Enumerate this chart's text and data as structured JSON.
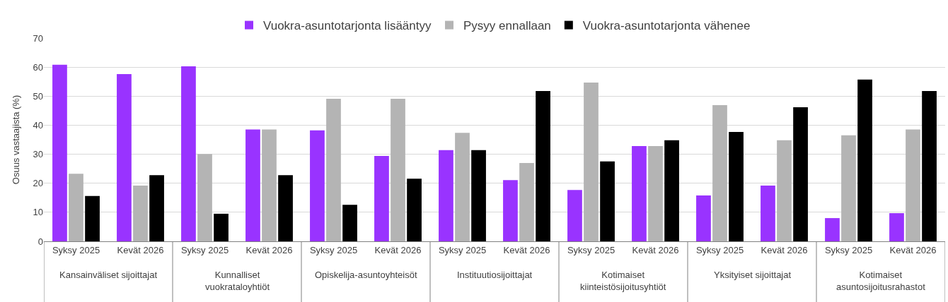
{
  "chart_data": {
    "type": "bar",
    "ylabel": "Osuus vastaajista (%)",
    "categories": [
      "Syksy 2025",
      "Kevät 2026",
      "Syksy 2025",
      "Kevät 2026",
      "Syksy 2025",
      "Kevät 2026",
      "Syksy 2025",
      "Kevät 2026",
      "Syksy 2025",
      "Kevät 2026",
      "Syksy 2025",
      "Kevät 2026",
      "Syksy 2025",
      "Kevät 2026"
    ],
    "annotations": [
      "Kansainväliset sijoittajat",
      "Kunnalliset vuokrataloyhtiöt",
      "Opiskelija-asuntoyhteisöt",
      "Instituutiosijoittajat",
      "Kotimaiset kiinteistösijoitusyhtiöt",
      "Yksityiset sijoittajat",
      "Kotimaiset asuntosijoitusrahastot"
    ],
    "series": [
      {
        "name": "Vuokra-asuntotarjonta lisääntyy",
        "color": "#9933ff",
        "values": [
          60.8,
          57.6,
          60.3,
          38.5,
          38.2,
          29.4,
          31.4,
          21.1,
          17.7,
          32.8,
          15.8,
          19.2,
          8.0,
          9.7
        ]
      },
      {
        "name": "Pysyy ennallaan",
        "color": "#b4b4b4",
        "values": [
          23.3,
          19.2,
          30.1,
          38.5,
          49.1,
          49.1,
          37.4,
          27.0,
          54.7,
          32.8,
          46.9,
          34.8,
          36.5,
          38.5
        ]
      },
      {
        "name": "Vuokra-asuntotarjonta vähenee",
        "color": "#000000",
        "values": [
          15.6,
          22.8,
          9.5,
          22.8,
          12.6,
          21.6,
          31.4,
          51.8,
          27.5,
          34.8,
          37.7,
          46.2,
          55.7,
          51.8
        ]
      }
    ],
    "ylim": [
      0,
      70
    ],
    "yticks": [
      0,
      10,
      20,
      30,
      40,
      50,
      60,
      70
    ],
    "grid": "y",
    "legend": "top"
  }
}
